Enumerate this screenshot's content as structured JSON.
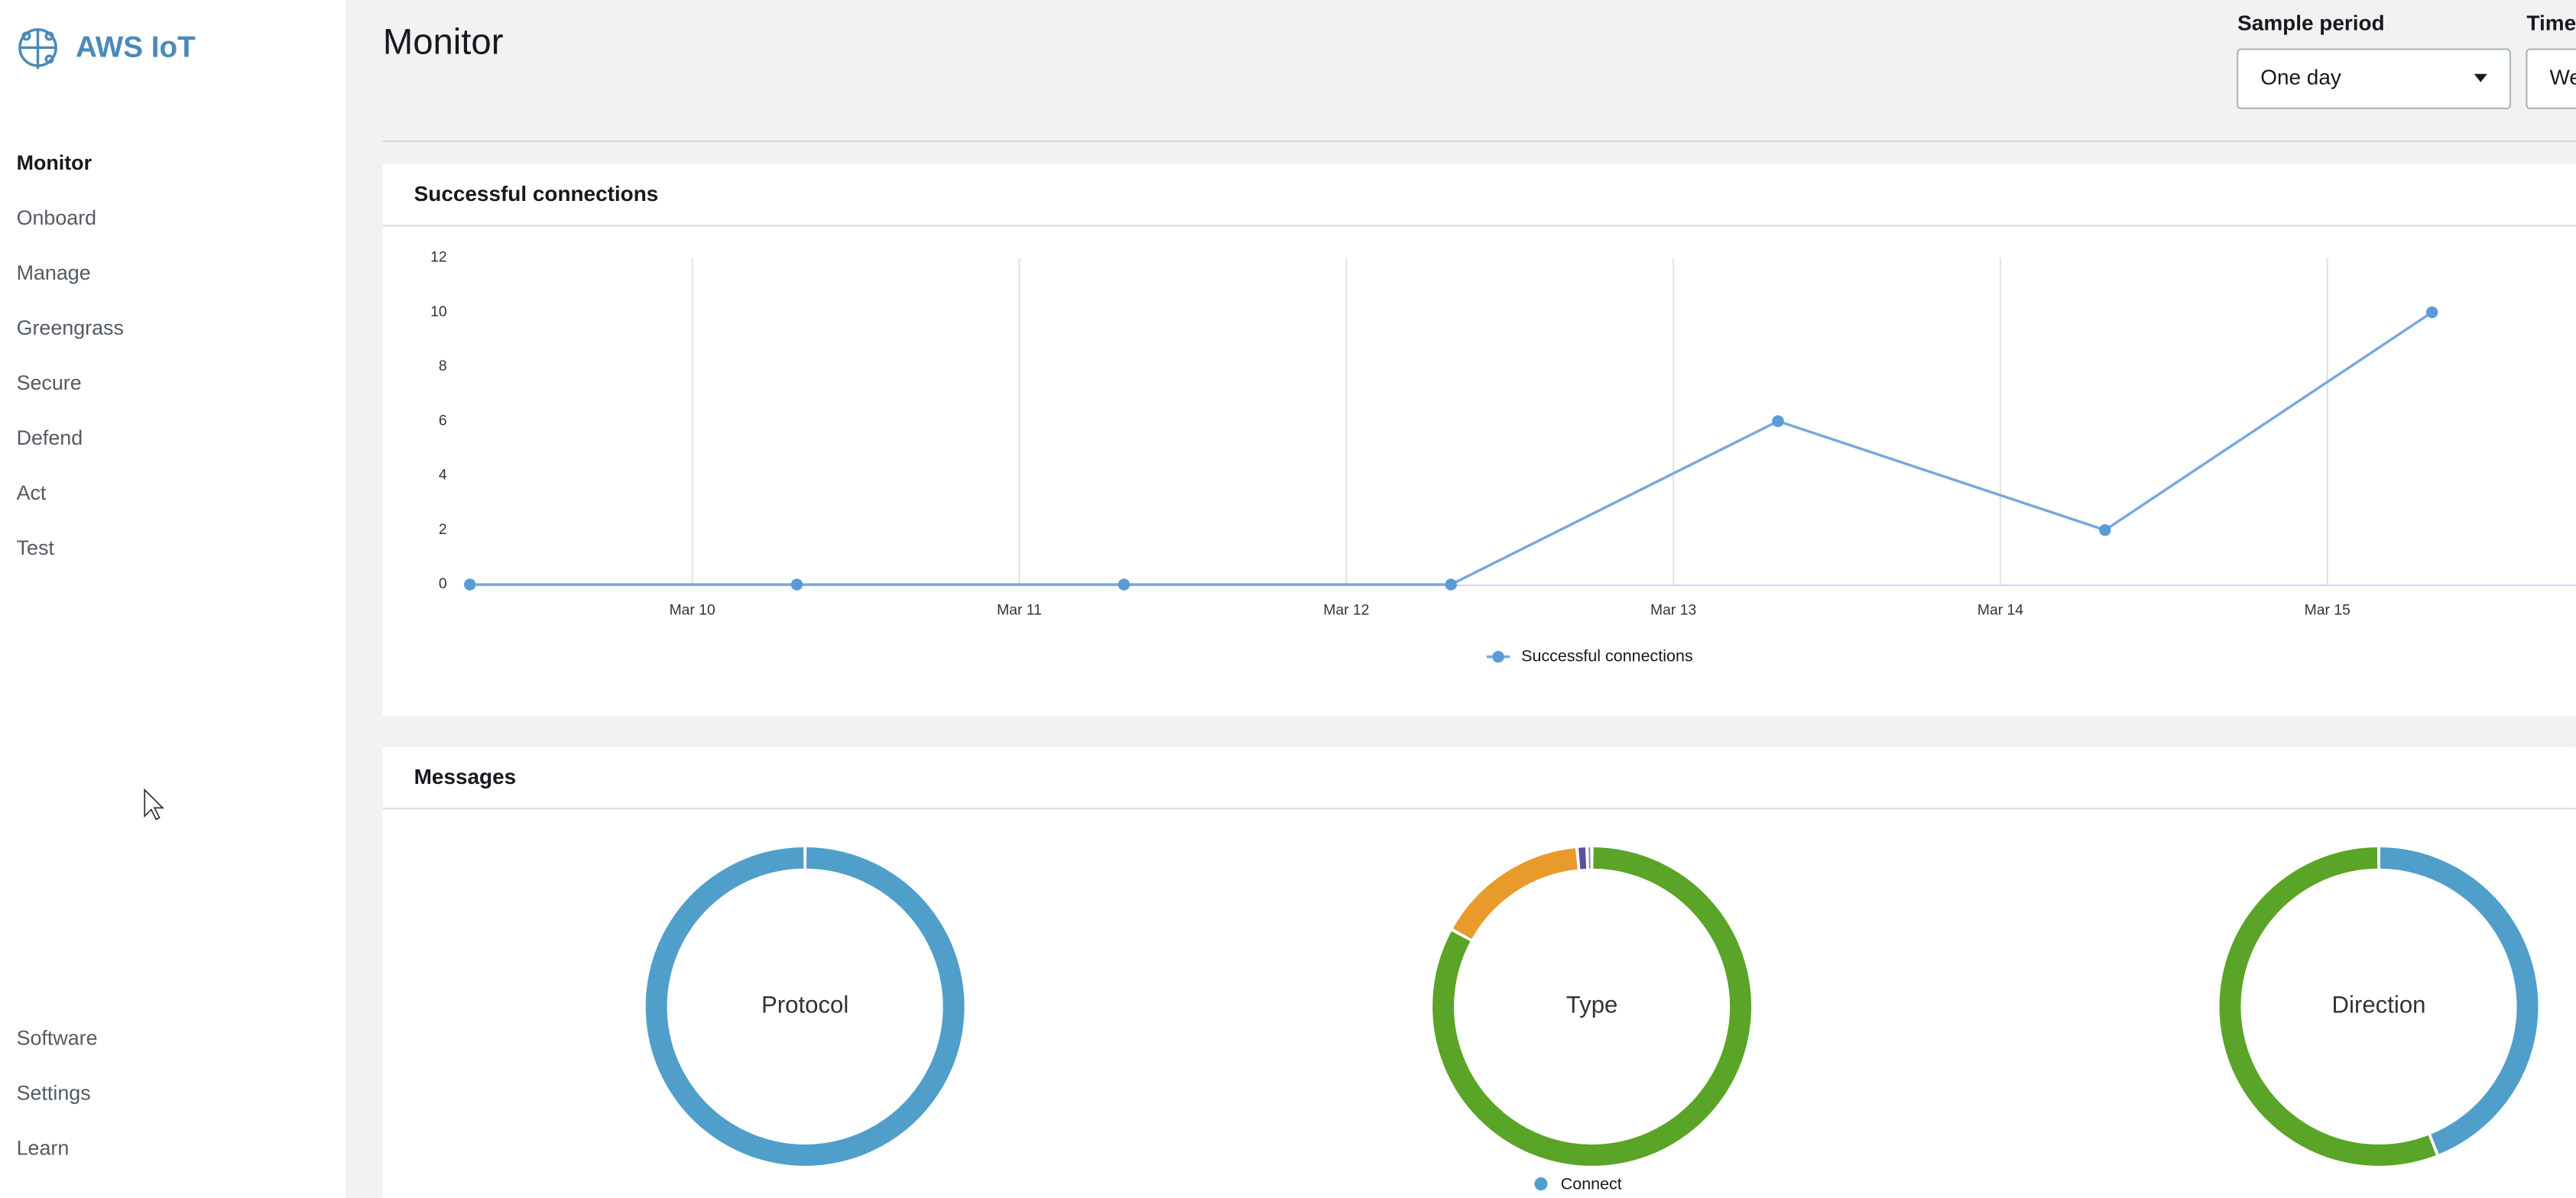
{
  "sidebar": {
    "brand": "AWS IoT",
    "nav": [
      "Monitor",
      "Onboard",
      "Manage",
      "Greengrass",
      "Secure",
      "Defend",
      "Act",
      "Test"
    ],
    "footer_nav": [
      "Software",
      "Settings",
      "Learn"
    ]
  },
  "header": {
    "title": "Monitor",
    "controls": [
      {
        "label": "Sample period",
        "value": "One day"
      },
      {
        "label": "Time",
        "value": "We"
      }
    ]
  },
  "chart_data": [
    {
      "type": "line",
      "title": "Successful connections",
      "x": [
        9.32,
        10.32,
        11.32,
        12.32,
        13.32,
        14.32,
        15.32
      ],
      "series": [
        {
          "name": "Successful connections",
          "color": "#75a9de",
          "values": [
            0,
            0,
            0,
            0,
            6,
            2,
            10
          ]
        }
      ],
      "xlim": [
        9.32,
        15.76
      ],
      "xticks": [
        {
          "value": 10,
          "label": "Mar 10"
        },
        {
          "value": 11,
          "label": "Mar 11"
        },
        {
          "value": 12,
          "label": "Mar 12"
        },
        {
          "value": 13,
          "label": "Mar 13"
        },
        {
          "value": 14,
          "label": "Mar 14"
        },
        {
          "value": 15,
          "label": "Mar 15"
        }
      ],
      "ylim": [
        0,
        12
      ],
      "yticks": [
        0,
        2,
        4,
        6,
        8,
        10,
        12
      ],
      "grid": "x"
    },
    {
      "type": "donut",
      "title": "Messages",
      "donuts": [
        {
          "label": "Protocol",
          "slices": [
            {
              "value": 100,
              "color": "#509fca"
            }
          ]
        },
        {
          "label": "Type",
          "slices": [
            {
              "value": 83,
              "color": "#5aa427"
            },
            {
              "value": 15.5,
              "color": "#e89b2b"
            },
            {
              "value": 1,
              "color": "#5b4f9e"
            },
            {
              "value": 0.5,
              "color": "#9a9a9a"
            }
          ]
        },
        {
          "label": "Direction",
          "slices": [
            {
              "value": 44,
              "color": "#509fca"
            },
            {
              "value": 56,
              "color": "#5aa427"
            }
          ]
        }
      ],
      "legend": [
        {
          "label": "Connect",
          "color": "#509fca"
        }
      ]
    }
  ]
}
